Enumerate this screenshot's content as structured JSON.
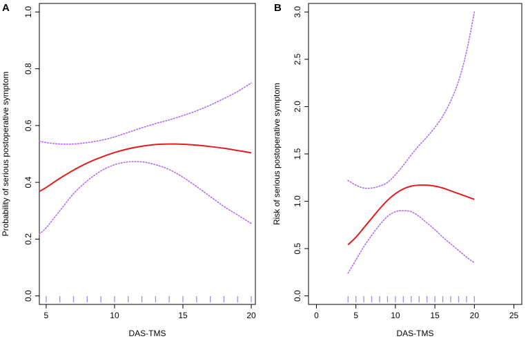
{
  "colors": {
    "fit": "#e41a1c",
    "ci": "#b266ff",
    "rug": "#9a8cff"
  },
  "chart_data": [
    {
      "panel": "A",
      "type": "line",
      "xlabel": "DAS-TMS",
      "ylabel": "Probability of serious postoperative symptom",
      "xlim": [
        4.5,
        20.3
      ],
      "ylim": [
        -0.03,
        1.03
      ],
      "xticks": [
        5,
        10,
        15,
        20
      ],
      "xtick_labels": [
        "5",
        "10",
        "15",
        "20"
      ],
      "yticks": [
        0.0,
        0.2,
        0.4,
        0.6,
        0.8,
        1.0
      ],
      "ytick_labels": [
        "0.0",
        "0.2",
        "0.4",
        "0.6",
        "0.8",
        "1.0"
      ],
      "rug": [
        5,
        6,
        7,
        8,
        9,
        10,
        11,
        12,
        13,
        14,
        15,
        16,
        17,
        18,
        19,
        20
      ],
      "series": [
        {
          "name": "fit",
          "style": "solid",
          "x": [
            4.5,
            5,
            6,
            7,
            8,
            9,
            10,
            11,
            12,
            13,
            14,
            15,
            16,
            17,
            18,
            19,
            20
          ],
          "y": [
            0.368,
            0.382,
            0.414,
            0.443,
            0.468,
            0.488,
            0.505,
            0.518,
            0.527,
            0.533,
            0.535,
            0.534,
            0.531,
            0.526,
            0.52,
            0.512,
            0.504
          ]
        },
        {
          "name": "upper 95% CI",
          "style": "dotted",
          "x": [
            4.5,
            5,
            6,
            7,
            8,
            9,
            10,
            11,
            12,
            13,
            14,
            15,
            16,
            17,
            18,
            19,
            20
          ],
          "y": [
            0.545,
            0.54,
            0.535,
            0.535,
            0.54,
            0.548,
            0.56,
            0.576,
            0.592,
            0.607,
            0.62,
            0.635,
            0.652,
            0.672,
            0.695,
            0.72,
            0.75
          ]
        },
        {
          "name": "lower 95% CI",
          "style": "dotted",
          "x": [
            4.5,
            5,
            6,
            7,
            8,
            9,
            10,
            11,
            12,
            13,
            14,
            15,
            16,
            17,
            18,
            19,
            20
          ],
          "y": [
            0.218,
            0.24,
            0.3,
            0.36,
            0.405,
            0.44,
            0.462,
            0.472,
            0.472,
            0.462,
            0.445,
            0.418,
            0.385,
            0.35,
            0.315,
            0.285,
            0.255
          ]
        }
      ]
    },
    {
      "panel": "B",
      "type": "line",
      "xlabel": "DAS-TMS",
      "ylabel": "Risk of serious postoperative symptom",
      "xlim": [
        -1,
        26
      ],
      "ylim": [
        -0.09,
        3.09
      ],
      "xticks": [
        0,
        5,
        10,
        15,
        20,
        25
      ],
      "xtick_labels": [
        "0",
        "5",
        "10",
        "15",
        "20",
        "25"
      ],
      "yticks": [
        0.0,
        0.5,
        1.0,
        1.5,
        2.0,
        2.5,
        3.0
      ],
      "ytick_labels": [
        "0.0",
        "0.5",
        "1.0",
        "1.5",
        "2.0",
        "2.5",
        "3.0"
      ],
      "rug": [
        4,
        5,
        6,
        7,
        8,
        9,
        10,
        11,
        12,
        13,
        14,
        15,
        16,
        17,
        18,
        19,
        20
      ],
      "series": [
        {
          "name": "fit",
          "style": "solid",
          "x": [
            4,
            5,
            6,
            7,
            8,
            9,
            10,
            11,
            12,
            13,
            14,
            15,
            16,
            17,
            18,
            19,
            20
          ],
          "y": [
            0.54,
            0.62,
            0.72,
            0.82,
            0.92,
            1.01,
            1.08,
            1.13,
            1.16,
            1.17,
            1.17,
            1.16,
            1.14,
            1.11,
            1.08,
            1.05,
            1.02
          ]
        },
        {
          "name": "upper 95% CI",
          "style": "dotted",
          "x": [
            4,
            5,
            6,
            7,
            8,
            9,
            10,
            11,
            12,
            13,
            14,
            15,
            16,
            17,
            18,
            19,
            20
          ],
          "y": [
            1.22,
            1.17,
            1.14,
            1.14,
            1.16,
            1.2,
            1.28,
            1.38,
            1.49,
            1.59,
            1.68,
            1.78,
            1.9,
            2.06,
            2.27,
            2.58,
            3.0
          ]
        },
        {
          "name": "lower 95% CI",
          "style": "dotted",
          "x": [
            4,
            5,
            6,
            7,
            8,
            9,
            10,
            11,
            12,
            13,
            14,
            15,
            16,
            17,
            18,
            19,
            20
          ],
          "y": [
            0.24,
            0.38,
            0.52,
            0.64,
            0.75,
            0.84,
            0.89,
            0.9,
            0.89,
            0.84,
            0.77,
            0.7,
            0.62,
            0.55,
            0.48,
            0.41,
            0.35
          ]
        }
      ]
    }
  ]
}
